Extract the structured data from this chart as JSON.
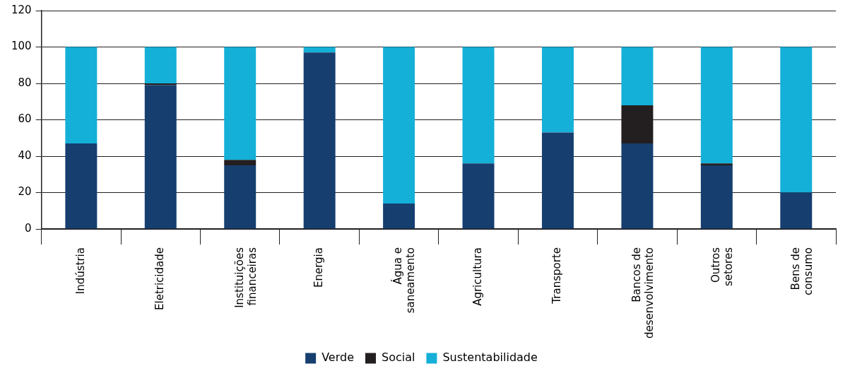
{
  "chart_data": {
    "type": "bar",
    "stacked": true,
    "categories": [
      "Indústria",
      "Eletricidade",
      "Instituições financeiras",
      "Energia",
      "Água e saneamento",
      "Agricultura",
      "Transporte",
      "Bancos de desenvolvimento",
      "Outros setores",
      "Bens de consumo"
    ],
    "series": [
      {
        "name": "Verde",
        "color": "#163f70",
        "values": [
          47,
          79,
          35,
          97,
          14,
          36,
          53,
          47,
          35,
          20
        ]
      },
      {
        "name": "Social",
        "color": "#231f20",
        "values": [
          0,
          1,
          3,
          0,
          0,
          0,
          0,
          21,
          1,
          0
        ]
      },
      {
        "name": "Sustentabilidade",
        "color": "#14b0d8",
        "values": [
          53,
          20,
          62,
          3,
          86,
          64,
          47,
          32,
          64,
          80
        ]
      }
    ],
    "ylim": [
      0,
      120
    ],
    "yticks": [
      0,
      20,
      40,
      60,
      80,
      100,
      120
    ],
    "grid": "y",
    "legend": "bottom"
  }
}
